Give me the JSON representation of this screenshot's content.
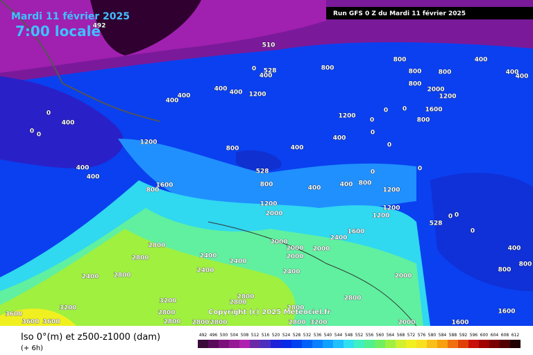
{
  "header": {
    "date": "Mardi 11 février 2025",
    "time": "7:00 locale",
    "run": "Run GFS 0 Z du Mardi 11 février 2025"
  },
  "footer": {
    "title": "Iso 0°(m) et z500-z1000 (dam)",
    "step": "(+ 6h)",
    "copyright": "Copyright (c) 2025 Meteociel.fr"
  },
  "scale": {
    "labels": [
      492,
      496,
      500,
      504,
      508,
      512,
      516,
      520,
      524,
      528,
      532,
      536,
      540,
      544,
      548,
      552,
      556,
      560,
      564,
      568,
      572,
      576,
      580,
      584,
      588,
      592,
      596,
      600,
      604,
      608,
      612
    ],
    "colors": [
      "#3a0a3a",
      "#5a0a5a",
      "#7a107a",
      "#951895",
      "#b020b0",
      "#6a2aa8",
      "#4a30c0",
      "#2020d8",
      "#0a28e8",
      "#0040f0",
      "#0060f8",
      "#0a80ff",
      "#10a0ff",
      "#20c0ff",
      "#30e0f0",
      "#40f0c0",
      "#50f090",
      "#70f060",
      "#a0f040",
      "#d0f030",
      "#f0f020",
      "#f8e020",
      "#f8c018",
      "#f8a010",
      "#f07010",
      "#e04008",
      "#c81008",
      "#a00000",
      "#780000",
      "#500000",
      "#200000"
    ]
  },
  "map_labels": [
    492,
    510,
    528,
    0,
    400,
    800,
    800,
    400,
    800,
    800,
    400,
    400,
    800,
    2000,
    1200,
    1200,
    400,
    400,
    400,
    400,
    0,
    400,
    0,
    0,
    1200,
    0,
    0,
    0,
    1600,
    800,
    0,
    400,
    1200,
    800,
    400,
    0,
    400,
    528,
    0,
    0,
    400,
    1600,
    800,
    800,
    400,
    400,
    800,
    1200,
    1200,
    1200,
    2000,
    1200,
    528,
    1600,
    2400,
    2000,
    2800,
    2000,
    2000,
    2400,
    2400,
    2000,
    2800,
    2400,
    2400,
    2800,
    2400,
    2000,
    3200,
    2800,
    2800,
    3200,
    2800,
    2800,
    2800,
    1600,
    3600,
    3600,
    3600,
    2800,
    2800,
    2800,
    2800,
    3200,
    2000,
    1600,
    400,
    800,
    800,
    0,
    0,
    0
  ]
}
